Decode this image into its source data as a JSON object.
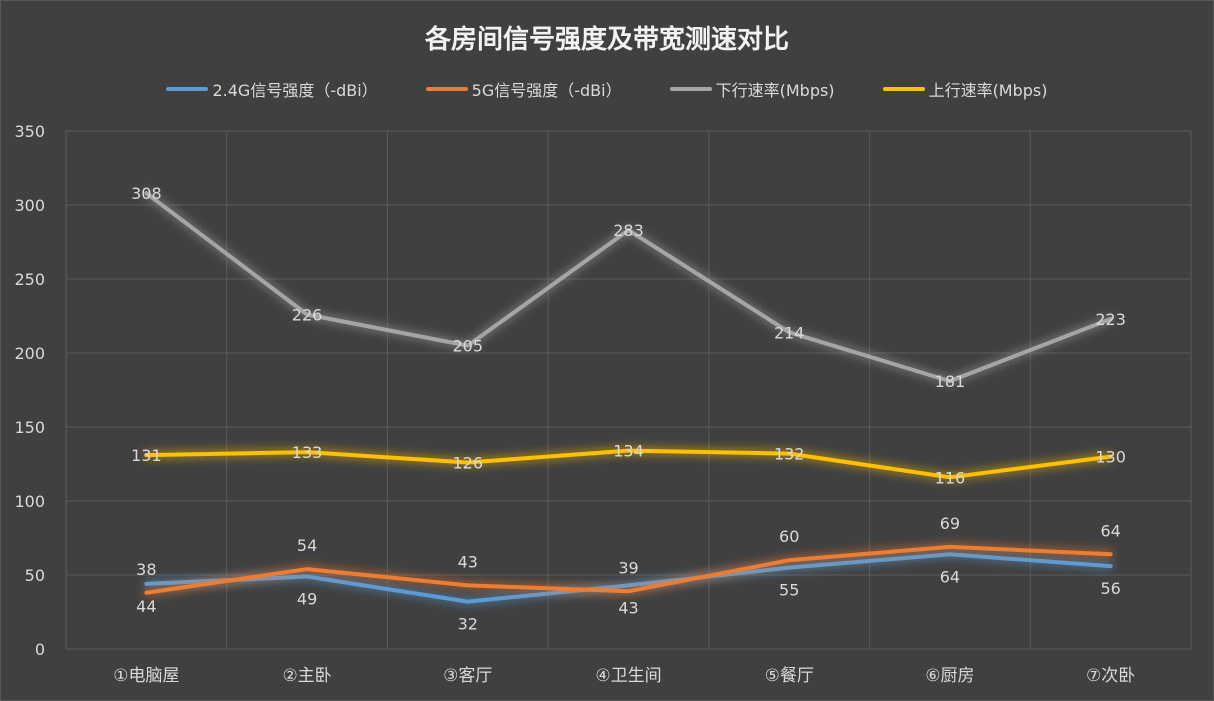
{
  "chart_data": {
    "type": "line",
    "title": "各房间信号强度及带宽测速对比",
    "categories": [
      "①电脑屋",
      "②主卧",
      "③客厅",
      "④卫生间",
      "⑤餐厅",
      "⑥厨房",
      "⑦次卧"
    ],
    "ylim": [
      0,
      350
    ],
    "yticks": [
      0,
      50,
      100,
      150,
      200,
      250,
      300,
      350
    ],
    "grid": true,
    "legend_position": "top",
    "series": [
      {
        "name": "2.4G信号强度（-dBi）",
        "color": "#5b9bd5",
        "label_pos": "below",
        "values": [
          44,
          49,
          32,
          43,
          55,
          64,
          56
        ]
      },
      {
        "name": "5G信号强度（-dBi）",
        "color": "#ed7d31",
        "label_pos": "above",
        "values": [
          38,
          54,
          43,
          39,
          60,
          69,
          64
        ]
      },
      {
        "name": "下行速率(Mbps)",
        "color": "#a5a5a5",
        "label_pos": "center",
        "values": [
          308,
          226,
          205,
          283,
          214,
          181,
          223
        ]
      },
      {
        "name": "上行速率(Mbps)",
        "color": "#ffc000",
        "label_pos": "center",
        "values": [
          131,
          133,
          126,
          134,
          132,
          116,
          130
        ]
      }
    ]
  }
}
